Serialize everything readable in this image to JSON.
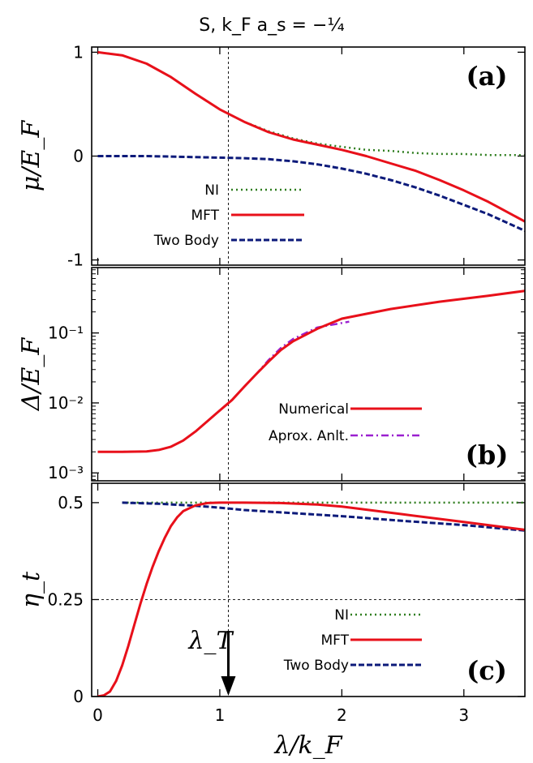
{
  "title": "S, k_F a_s = −¼",
  "x_axis": {
    "label": "λ/k_F",
    "range": [
      -0.05,
      3.5
    ],
    "ticks": [
      0,
      1,
      2,
      3
    ],
    "tick_labels": [
      "0",
      "1",
      "2",
      "3"
    ]
  },
  "lambda_T": {
    "label": "λ_T",
    "x": 1.07
  },
  "colors": {
    "NI": "#2e7d1e",
    "MFT": "#e8101a",
    "TwoBody": "#0c1a7a",
    "Approx": "#9b20d0"
  },
  "chart_data": [
    {
      "panel": "a",
      "tag": "(a)",
      "type": "line",
      "ylabel": "μ/E_F",
      "ylim": [
        -1.05,
        1.05
      ],
      "yscale": "linear",
      "yticks": [
        1,
        0,
        -1
      ],
      "ytick_labels": [
        "1",
        "0",
        "-1"
      ],
      "legend": {
        "placement": "bottom-center",
        "entries": [
          "NI",
          "MFT",
          "Two Body"
        ]
      },
      "series": [
        {
          "name": "NI",
          "style": "dotted",
          "color_key": "NI",
          "x": [
            0,
            0.2,
            0.4,
            0.6,
            0.8,
            1.0,
            1.2,
            1.4,
            1.6,
            1.8,
            2.0,
            2.2,
            2.4,
            2.6,
            2.8,
            3.0,
            3.2,
            3.5
          ],
          "y": [
            1.0,
            0.97,
            0.89,
            0.76,
            0.6,
            0.45,
            0.33,
            0.24,
            0.17,
            0.12,
            0.09,
            0.06,
            0.05,
            0.03,
            0.02,
            0.02,
            0.01,
            0.01
          ]
        },
        {
          "name": "MFT",
          "style": "solid",
          "color_key": "MFT",
          "x": [
            0,
            0.2,
            0.4,
            0.6,
            0.8,
            1.0,
            1.2,
            1.4,
            1.6,
            1.8,
            2.0,
            2.2,
            2.4,
            2.6,
            2.8,
            3.0,
            3.2,
            3.5
          ],
          "y": [
            1.0,
            0.97,
            0.89,
            0.76,
            0.6,
            0.45,
            0.33,
            0.23,
            0.16,
            0.11,
            0.06,
            0.0,
            -0.07,
            -0.14,
            -0.23,
            -0.33,
            -0.44,
            -0.63
          ]
        },
        {
          "name": "Two Body",
          "style": "dashed",
          "color_key": "TwoBody",
          "x": [
            0,
            0.2,
            0.4,
            0.6,
            0.8,
            1.0,
            1.2,
            1.4,
            1.6,
            1.8,
            2.0,
            2.2,
            2.4,
            2.6,
            2.8,
            3.0,
            3.2,
            3.5
          ],
          "y": [
            0.0,
            0.0,
            0.0,
            -0.005,
            -0.01,
            -0.015,
            -0.02,
            -0.03,
            -0.05,
            -0.08,
            -0.12,
            -0.17,
            -0.23,
            -0.3,
            -0.38,
            -0.47,
            -0.56,
            -0.72
          ]
        }
      ]
    },
    {
      "panel": "b",
      "tag": "(b)",
      "type": "line",
      "ylabel": "Δ/E_F",
      "ylim": [
        0.00077,
        0.86
      ],
      "yscale": "log",
      "yticks": [
        0.1,
        0.01,
        0.001
      ],
      "ytick_labels": [
        "10⁻¹",
        "10⁻²",
        "10⁻³"
      ],
      "legend": {
        "placement": "bottom-right",
        "entries": [
          "Numerical",
          "Aprox. Anlt."
        ]
      },
      "series": [
        {
          "name": "Numerical",
          "style": "solid",
          "color_key": "MFT",
          "x": [
            0,
            0.2,
            0.4,
            0.5,
            0.6,
            0.7,
            0.8,
            0.9,
            1.0,
            1.1,
            1.2,
            1.3,
            1.4,
            1.5,
            1.6,
            1.8,
            2.0,
            2.4,
            2.8,
            3.2,
            3.5
          ],
          "y": [
            0.002,
            0.002,
            0.00203,
            0.00213,
            0.00237,
            0.0029,
            0.0039,
            0.0055,
            0.0078,
            0.011,
            0.017,
            0.026,
            0.039,
            0.057,
            0.076,
            0.115,
            0.16,
            0.22,
            0.28,
            0.34,
            0.4
          ]
        },
        {
          "name": "Aprox. Anlt.",
          "style": "dashdot",
          "color_key": "Approx",
          "x": [
            0,
            0.2,
            0.4,
            0.5,
            0.6,
            0.7,
            0.8,
            0.9,
            1.0,
            1.1,
            1.2,
            1.3,
            1.4,
            1.5,
            1.6,
            1.8,
            2.06
          ],
          "y": [
            0.002,
            0.002,
            0.00203,
            0.00213,
            0.00237,
            0.0029,
            0.0039,
            0.0055,
            0.0078,
            0.011,
            0.017,
            0.026,
            0.041,
            0.061,
            0.082,
            0.12,
            0.145
          ]
        }
      ]
    },
    {
      "panel": "c",
      "tag": "(c)",
      "type": "line",
      "ylabel": "η_t",
      "ylim": [
        0,
        0.55
      ],
      "yscale": "linear",
      "yticks": [
        0.5,
        0.25,
        0
      ],
      "ytick_labels": [
        "0.5",
        "0.25",
        "0"
      ],
      "hline": 0.25,
      "legend": {
        "placement": "bottom-right",
        "entries": [
          "NI",
          "MFT",
          "Two Body"
        ]
      },
      "series": [
        {
          "name": "NI",
          "style": "dotted",
          "color_key": "NI",
          "x": [
            0.2,
            0.5,
            0.8,
            1.0,
            1.5,
            2.0,
            2.5,
            3.0,
            3.5
          ],
          "y": [
            0.5,
            0.5,
            0.5,
            0.5,
            0.5,
            0.5,
            0.5,
            0.5,
            0.5
          ]
        },
        {
          "name": "MFT",
          "style": "solid",
          "color_key": "MFT",
          "x": [
            0,
            0.05,
            0.1,
            0.15,
            0.2,
            0.25,
            0.3,
            0.35,
            0.4,
            0.45,
            0.5,
            0.55,
            0.6,
            0.65,
            0.7,
            0.8,
            0.9,
            1.0,
            1.2,
            1.5,
            1.8,
            2.0,
            2.5,
            3.0,
            3.5
          ],
          "y": [
            0,
            0.003,
            0.013,
            0.04,
            0.08,
            0.13,
            0.185,
            0.24,
            0.29,
            0.335,
            0.375,
            0.41,
            0.44,
            0.462,
            0.478,
            0.493,
            0.499,
            0.5,
            0.5,
            0.499,
            0.495,
            0.49,
            0.47,
            0.45,
            0.43
          ]
        },
        {
          "name": "Two Body",
          "style": "dashed",
          "color_key": "TwoBody",
          "x": [
            0.2,
            0.5,
            0.8,
            1.0,
            1.2,
            1.5,
            1.8,
            2.0,
            2.5,
            3.0,
            3.5
          ],
          "y": [
            0.5,
            0.497,
            0.492,
            0.487,
            0.481,
            0.475,
            0.469,
            0.465,
            0.453,
            0.442,
            0.428
          ]
        }
      ]
    }
  ]
}
